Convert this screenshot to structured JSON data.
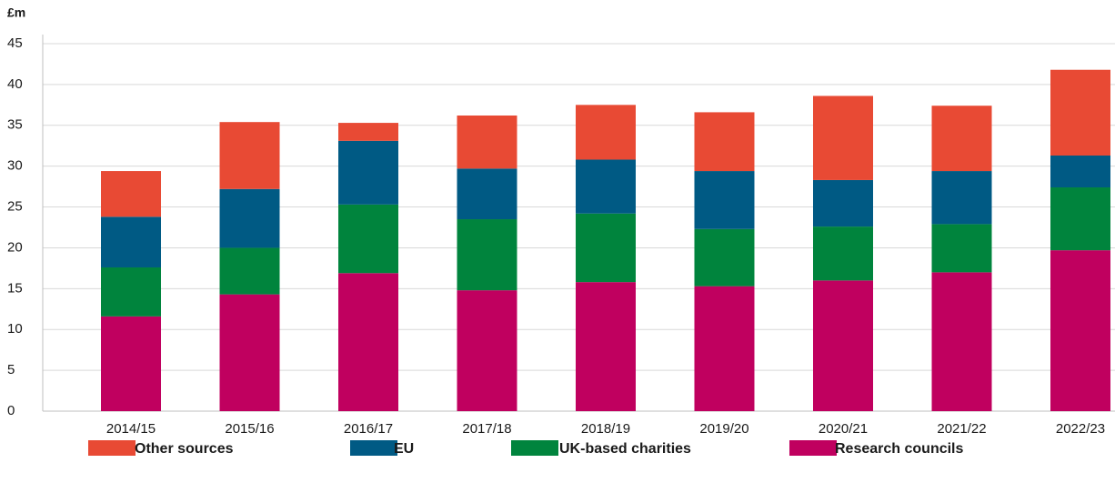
{
  "chart_data": {
    "type": "stacked_bar",
    "y_label": "£m",
    "categories": [
      "2014/15",
      "2015/16",
      "2016/17",
      "2017/18",
      "2018/19",
      "2019/20",
      "2020/21",
      "2021/22",
      "2022/23"
    ],
    "series": [
      {
        "name": "Research councils",
        "color": "#c0005f",
        "values": [
          11.6,
          14.3,
          16.9,
          14.8,
          15.8,
          15.3,
          16.0,
          17.0,
          19.7
        ]
      },
      {
        "name": "UK-based charities",
        "color": "#00843d",
        "values": [
          6.0,
          5.7,
          8.4,
          8.7,
          8.4,
          7.0,
          6.6,
          5.9,
          7.7
        ]
      },
      {
        "name": "EU",
        "color": "#005a84",
        "values": [
          6.2,
          7.2,
          7.8,
          6.2,
          6.6,
          7.1,
          5.7,
          6.5,
          3.9
        ]
      },
      {
        "name": "Other sources",
        "color": "#e84a34",
        "values": [
          5.6,
          8.2,
          2.2,
          6.5,
          6.7,
          7.2,
          10.3,
          8.0,
          10.5
        ]
      }
    ],
    "ylim": [
      0,
      45
    ],
    "yticks": [
      0,
      5,
      10,
      15,
      20,
      25,
      30,
      35,
      40,
      45
    ],
    "grid": true
  }
}
